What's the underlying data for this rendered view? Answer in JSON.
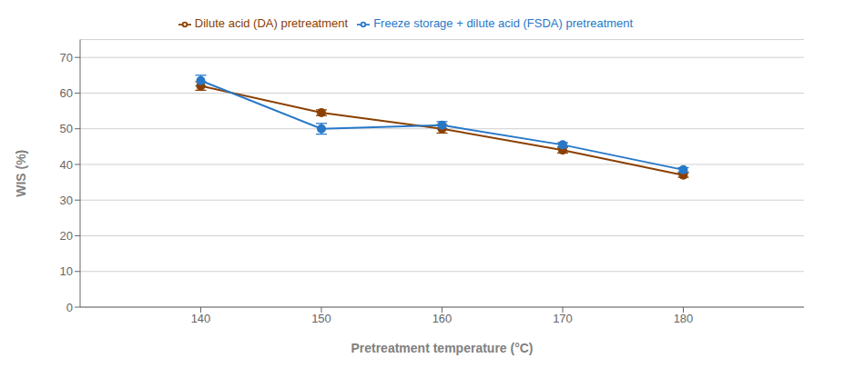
{
  "chart_data": {
    "type": "line",
    "x": [
      140,
      150,
      160,
      170,
      180
    ],
    "series": [
      {
        "name": "Dilute acid (DA) pretreatment",
        "color": "#8B4000",
        "marker": "circle",
        "values": [
          62.0,
          54.5,
          50.0,
          44.0,
          37.0
        ],
        "errors": [
          1.2,
          0.8,
          1.2,
          0.8,
          0.6
        ]
      },
      {
        "name": "Freeze storage + dilute acid (FSDA) pretreatment",
        "color": "#2878C8",
        "marker": "circle",
        "values": [
          63.5,
          50.0,
          51.0,
          45.5,
          38.5
        ],
        "errors": [
          1.5,
          1.5,
          1.0,
          0.6,
          0.6
        ]
      }
    ],
    "xlabel": "Pretreatment temperature (°C)",
    "ylabel": "WIS (%)",
    "xlim": [
      130,
      190
    ],
    "xticks": [
      140,
      150,
      160,
      170,
      180
    ],
    "ylim": [
      0,
      75
    ],
    "yticks": [
      0,
      10,
      20,
      30,
      40,
      50,
      60,
      70
    ],
    "grid": true,
    "legend": "top"
  }
}
